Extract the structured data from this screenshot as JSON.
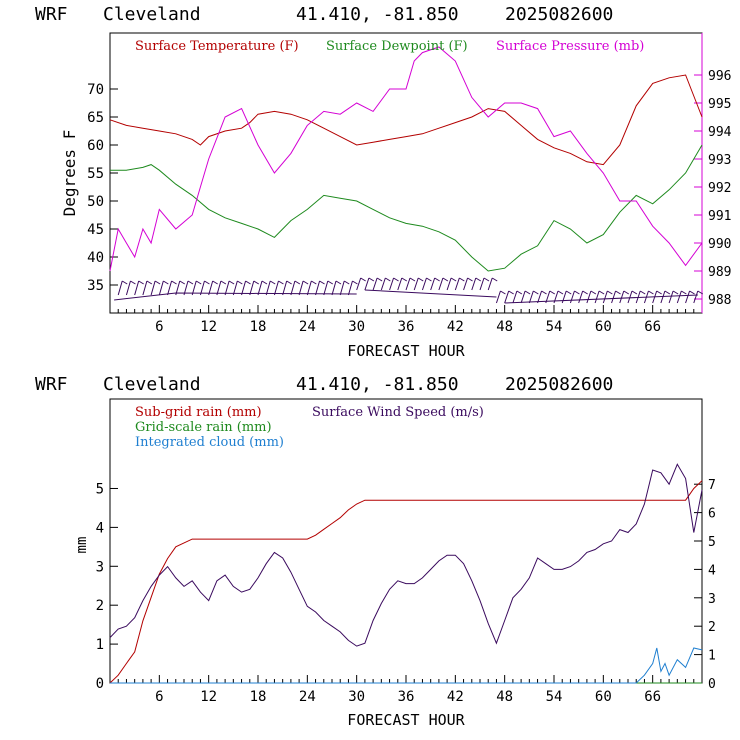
{
  "colors": {
    "temperature": "#b30000",
    "dewpoint": "#1e8a1e",
    "pressure": "#d400d4",
    "subgrid_rain": "#b30000",
    "gridscale_rain": "#1e8a1e",
    "cloud": "#1f7fd0",
    "wind_speed": "#3a0a5e",
    "axis": "#000000",
    "right_axis_top": "#d400d4"
  },
  "chart_data": [
    {
      "type": "line",
      "header": {
        "model": "WRF",
        "station": "Cleveland",
        "coords": "41.410, -81.850",
        "run": "2025082600"
      },
      "xlabel": "FORECAST HOUR",
      "ylabel": "Degrees F",
      "xlim": [
        0,
        72
      ],
      "ylim": [
        30,
        80
      ],
      "y2lim": [
        987.5,
        997.5
      ],
      "x_ticks": [
        6,
        12,
        18,
        24,
        30,
        36,
        42,
        48,
        54,
        60,
        66
      ],
      "x_tick_labels": [
        "6",
        "12",
        "18",
        "24",
        "30",
        "36",
        "42",
        "48",
        "54",
        "60",
        "66"
      ],
      "y_ticks": [
        35,
        40,
        45,
        50,
        55,
        60,
        65,
        70
      ],
      "y_tick_labels": [
        "35",
        "40",
        "45",
        "50",
        "55",
        "60",
        "65",
        "70"
      ],
      "y2_ticks": [
        988,
        989,
        990,
        991,
        992,
        993,
        994,
        995,
        996
      ],
      "y2_tick_labels": [
        "988",
        "989",
        "990",
        "991",
        "992",
        "993",
        "994",
        "995",
        "996"
      ],
      "legend_placement": "top",
      "series": [
        {
          "name": "Surface Temperature (F)",
          "axis": "left",
          "x": [
            0,
            2,
            4,
            6,
            8,
            10,
            11,
            12,
            14,
            16,
            17,
            18,
            20,
            22,
            24,
            26,
            28,
            30,
            32,
            34,
            36,
            38,
            40,
            42,
            44,
            46,
            48,
            50,
            52,
            54,
            56,
            58,
            60,
            62,
            64,
            66,
            68,
            70,
            72
          ],
          "values": [
            64.5,
            63.5,
            63,
            62.5,
            62,
            61,
            60,
            61.5,
            62.5,
            63,
            64,
            65.5,
            66,
            65.5,
            64.5,
            63,
            61.5,
            60,
            60.5,
            61,
            61.5,
            62,
            63,
            64,
            65,
            66.5,
            66,
            63.5,
            61,
            59.5,
            58.5,
            57,
            56.5,
            60,
            67,
            71,
            72,
            72.5,
            65
          ]
        },
        {
          "name": "Surface Dewpoint (F)",
          "axis": "left",
          "x": [
            0,
            2,
            4,
            5,
            6,
            8,
            10,
            12,
            14,
            16,
            18,
            20,
            22,
            24,
            26,
            28,
            30,
            32,
            34,
            36,
            38,
            40,
            42,
            44,
            46,
            48,
            50,
            52,
            54,
            56,
            58,
            60,
            62,
            64,
            66,
            68,
            70,
            72
          ],
          "values": [
            55.5,
            55.5,
            56,
            56.5,
            55.5,
            53,
            51,
            48.5,
            47,
            46,
            45,
            43.5,
            46.5,
            48.5,
            51,
            50.5,
            50,
            48.5,
            47,
            46,
            45.5,
            44.5,
            43,
            40,
            37.5,
            38,
            40.5,
            42,
            46.5,
            45,
            42.5,
            44,
            48,
            51,
            49.5,
            52,
            55,
            60
          ]
        },
        {
          "name": "Surface Pressure (mb)",
          "axis": "right",
          "x": [
            0,
            1,
            2,
            3,
            4,
            5,
            6,
            8,
            10,
            11,
            12,
            14,
            16,
            18,
            20,
            22,
            24,
            26,
            28,
            30,
            32,
            34,
            36,
            37,
            38,
            40,
            42,
            44,
            46,
            48,
            50,
            52,
            54,
            56,
            58,
            60,
            62,
            64,
            66,
            68,
            70,
            72
          ],
          "values": [
            989,
            990.5,
            990,
            989.5,
            990.5,
            990,
            991.2,
            990.5,
            991,
            992,
            993,
            994.5,
            994.8,
            993.5,
            992.5,
            993.2,
            994.2,
            994.7,
            994.6,
            995,
            994.7,
            995.5,
            995.5,
            996.5,
            996.8,
            997,
            996.5,
            995.2,
            994.5,
            995,
            995,
            994.8,
            993.8,
            994,
            993.2,
            992.5,
            991.5,
            991.5,
            990.6,
            990,
            989.2,
            990
          ]
        }
      ],
      "wind_barbs": "station-model barbs along bottom of panel"
    },
    {
      "type": "line",
      "header": {
        "model": "WRF",
        "station": "Cleveland",
        "coords": "41.410, -81.850",
        "run": "2025082600"
      },
      "xlabel": "FORECAST HOUR",
      "ylabel": "mm",
      "xlim": [
        0,
        72
      ],
      "ylim": [
        0,
        7.3
      ],
      "y2lim": [
        0,
        10
      ],
      "x_ticks": [
        6,
        12,
        18,
        24,
        30,
        36,
        42,
        48,
        54,
        60,
        66
      ],
      "x_tick_labels": [
        "6",
        "12",
        "18",
        "24",
        "30",
        "36",
        "42",
        "48",
        "54",
        "60",
        "66"
      ],
      "y_ticks": [
        0,
        1,
        2,
        3,
        4,
        5
      ],
      "y_tick_labels": [
        "0",
        "1",
        "2",
        "3",
        "4",
        "5"
      ],
      "y2_ticks": [
        0,
        1,
        2,
        3,
        4,
        5,
        6,
        7
      ],
      "y2_tick_labels": [
        "0",
        "1",
        "2",
        "3",
        "4",
        "5",
        "6",
        "7"
      ],
      "legend_placement": "top-left",
      "series": [
        {
          "name": "Sub-grid rain (mm)",
          "axis": "left",
          "x": [
            0,
            1,
            2,
            3,
            4,
            5,
            6,
            7,
            8,
            10,
            12,
            18,
            24,
            25,
            26,
            27,
            28,
            29,
            30,
            31,
            32,
            40,
            50,
            60,
            66,
            70,
            71,
            72
          ],
          "values": [
            0,
            0.2,
            0.5,
            0.8,
            1.6,
            2.2,
            2.8,
            3.2,
            3.5,
            3.7,
            3.7,
            3.7,
            3.7,
            3.8,
            3.95,
            4.1,
            4.25,
            4.45,
            4.6,
            4.7,
            4.7,
            4.7,
            4.7,
            4.7,
            4.7,
            4.7,
            5.0,
            5.2
          ]
        },
        {
          "name": "Grid-scale rain (mm)",
          "axis": "left",
          "x": [
            0,
            72
          ],
          "values": [
            0,
            0
          ]
        },
        {
          "name": "Integrated cloud (mm)",
          "axis": "left",
          "x": [
            0,
            10,
            20,
            30,
            40,
            50,
            60,
            64,
            65,
            66,
            66.5,
            67,
            67.5,
            68,
            69,
            70,
            71,
            72
          ],
          "values": [
            0,
            0,
            0,
            0,
            0,
            0,
            0,
            0,
            0.2,
            0.5,
            0.9,
            0.3,
            0.5,
            0.2,
            0.6,
            0.4,
            0.9,
            0.85
          ]
        },
        {
          "name": "Surface Wind Speed (m/s)",
          "axis": "right",
          "x": [
            0,
            1,
            2,
            3,
            4,
            5,
            6,
            7,
            8,
            9,
            10,
            11,
            12,
            13,
            14,
            15,
            16,
            17,
            18,
            19,
            20,
            21,
            22,
            23,
            24,
            25,
            26,
            27,
            28,
            29,
            30,
            31,
            32,
            33,
            34,
            35,
            36,
            37,
            38,
            39,
            40,
            41,
            42,
            43,
            44,
            45,
            46,
            47,
            48,
            49,
            50,
            51,
            52,
            53,
            54,
            55,
            56,
            57,
            58,
            59,
            60,
            61,
            62,
            63,
            64,
            65,
            66,
            67,
            68,
            69,
            70,
            71,
            72
          ],
          "values": [
            1.6,
            1.9,
            2.0,
            2.3,
            2.9,
            3.4,
            3.8,
            4.1,
            3.7,
            3.4,
            3.6,
            3.2,
            2.9,
            3.6,
            3.8,
            3.4,
            3.2,
            3.3,
            3.7,
            4.2,
            4.6,
            4.4,
            3.9,
            3.3,
            2.7,
            2.5,
            2.2,
            2.0,
            1.8,
            1.5,
            1.3,
            1.4,
            2.2,
            2.8,
            3.3,
            3.6,
            3.5,
            3.5,
            3.7,
            4.0,
            4.3,
            4.5,
            4.5,
            4.2,
            3.6,
            2.9,
            2.1,
            1.4,
            2.2,
            3.0,
            3.3,
            3.7,
            4.4,
            4.2,
            4.0,
            4.0,
            4.1,
            4.3,
            4.6,
            4.7,
            4.9,
            5.0,
            5.4,
            5.3,
            5.6,
            6.3,
            7.5,
            7.4,
            7.0,
            7.7,
            7.2,
            5.3,
            6.8
          ]
        }
      ]
    }
  ],
  "legend": {
    "top": [
      {
        "label": "Surface Temperature (F)",
        "color_key": "temperature"
      },
      {
        "label": "Surface Dewpoint (F)",
        "color_key": "dewpoint"
      },
      {
        "label": "Surface Pressure (mb)",
        "color_key": "pressure"
      }
    ],
    "bottom": [
      {
        "label": "Sub-grid rain (mm)",
        "color_key": "subgrid_rain"
      },
      {
        "label": "Surface Wind Speed (m/s)",
        "color_key": "wind_speed"
      },
      {
        "label": "Grid-scale rain (mm)",
        "color_key": "gridscale_rain"
      },
      {
        "label": "Integrated cloud (mm)",
        "color_key": "cloud"
      }
    ]
  }
}
